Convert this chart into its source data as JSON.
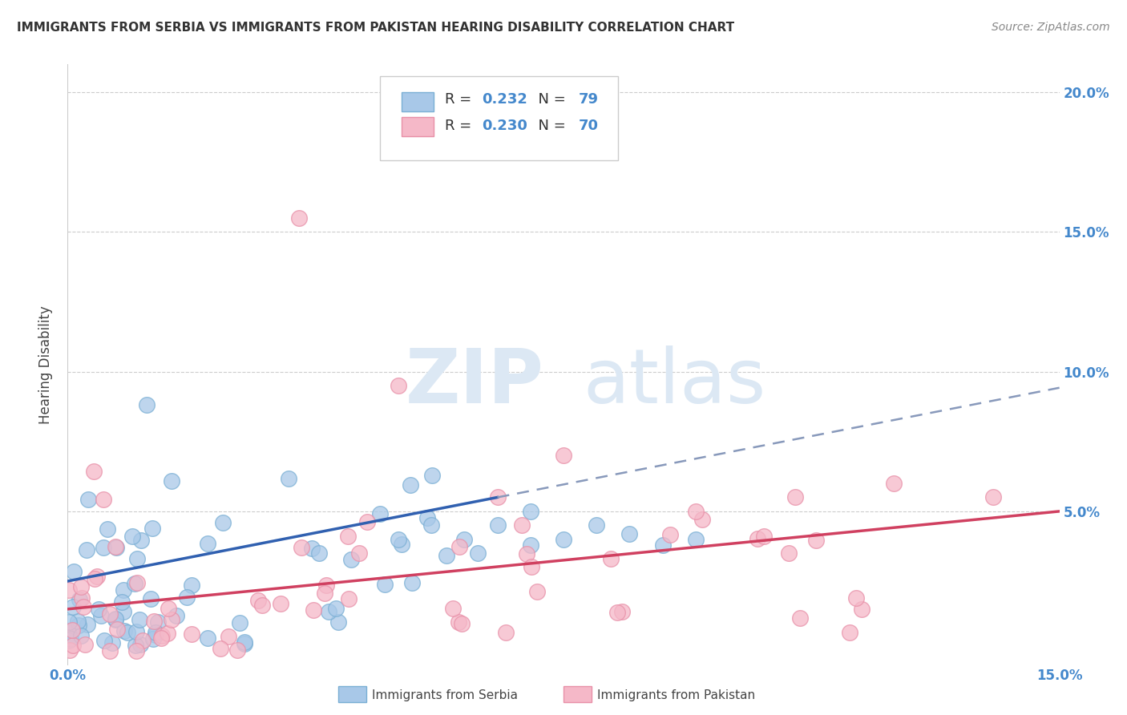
{
  "title": "IMMIGRANTS FROM SERBIA VS IMMIGRANTS FROM PAKISTAN HEARING DISABILITY CORRELATION CHART",
  "source": "Source: ZipAtlas.com",
  "ylabel": "Hearing Disability",
  "serbia_R": 0.232,
  "serbia_N": 79,
  "pakistan_R": 0.23,
  "pakistan_N": 70,
  "serbia_color": "#a8c8e8",
  "serbia_edge_color": "#7aafd4",
  "pakistan_color": "#f5b8c8",
  "pakistan_edge_color": "#e890a8",
  "serbia_line_color": "#3060b0",
  "pakistan_line_color": "#d04060",
  "dashed_line_color": "#8899bb",
  "background_color": "#ffffff",
  "grid_color": "#cccccc",
  "xlim": [
    0.0,
    0.15
  ],
  "ylim": [
    -0.005,
    0.21
  ],
  "legend_serbia_label": "Immigrants from Serbia",
  "legend_pakistan_label": "Immigrants from Pakistan",
  "watermark_zip": "ZIP",
  "watermark_atlas": "atlas",
  "title_color": "#333333",
  "source_color": "#888888",
  "axis_label_color": "#4488cc",
  "ylabel_color": "#444444"
}
